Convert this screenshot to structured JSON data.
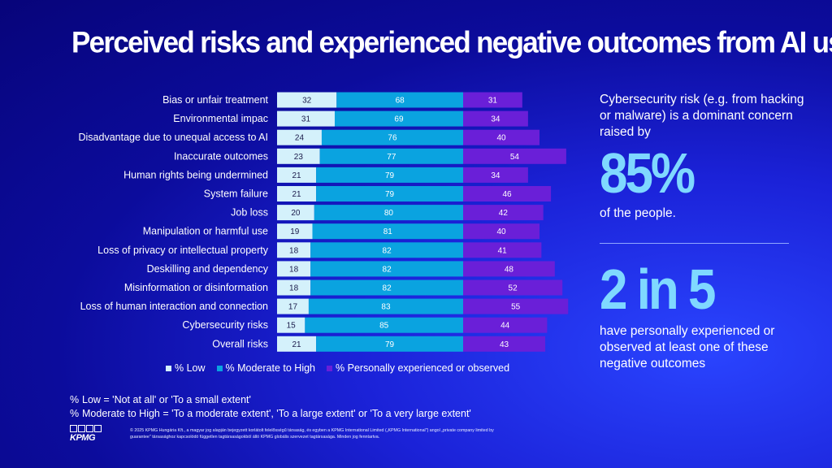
{
  "page": {
    "title": "Perceived risks and experienced negative outcomes from AI use"
  },
  "chart_data": {
    "type": "bar",
    "orientation": "horizontal",
    "stacked_series": [
      "% Low",
      "% Moderate to High"
    ],
    "categories": [
      "Bias or unfair treatment",
      "Environmental impac",
      "Disadvantage due to unequal access to AI",
      "Inaccurate outcomes",
      "Human rights being undermined",
      "System failure",
      "Job loss",
      "Manipulation or harmful use",
      "Loss of privacy or intellectual property",
      "Deskilling and dependency",
      "Misinformation or disinformation",
      "Loss of human interaction and connection",
      "Cybersecurity risks",
      "Overall risks"
    ],
    "series": [
      {
        "name": "% Low",
        "color": "#d4f1fb",
        "values": [
          32,
          31,
          24,
          23,
          21,
          21,
          20,
          19,
          18,
          18,
          18,
          17,
          15,
          21
        ]
      },
      {
        "name": "% Moderate to High",
        "color": "#0aa3e0",
        "values": [
          68,
          69,
          76,
          77,
          79,
          79,
          80,
          81,
          82,
          82,
          82,
          83,
          85,
          79
        ]
      },
      {
        "name": "% Personally experienced or observed",
        "color": "#6a1fd8",
        "values": [
          31,
          34,
          40,
          54,
          34,
          46,
          42,
          40,
          41,
          48,
          52,
          55,
          44,
          43
        ]
      }
    ],
    "legend_position": "bottom",
    "grid": false
  },
  "notes": [
    {
      "pct": "%",
      "text": "Low =  'Not at all' or 'To a small extent'"
    },
    {
      "pct": "%",
      "text": "Moderate to High =  'To a moderate extent', 'To a large extent' or 'To a very large extent'"
    }
  ],
  "copyright": "© 2025 KPMG Hungária Kft., a magyar jog alapján bejegyzett korlátolt felelősségű társaság, és egyben a KPMG International Limited („KPMG International\") angol „private company limited by guarantee\" társasághoz kapcsolódó független tagtársaságokból álló KPMG globális szervezet tagtársasága. Minden jog fenntartva.",
  "logo": {
    "word": "KPMG"
  },
  "side": {
    "stat1_text_before": "Cybersecurity risk (e.g. from hacking or malware) is a dominant concern raised by",
    "stat1_big": "85%",
    "stat1_text_after": "of the people.",
    "stat2_big": "2 in 5",
    "stat2_text": "have personally experienced or observed at least one of these negative outcomes"
  }
}
